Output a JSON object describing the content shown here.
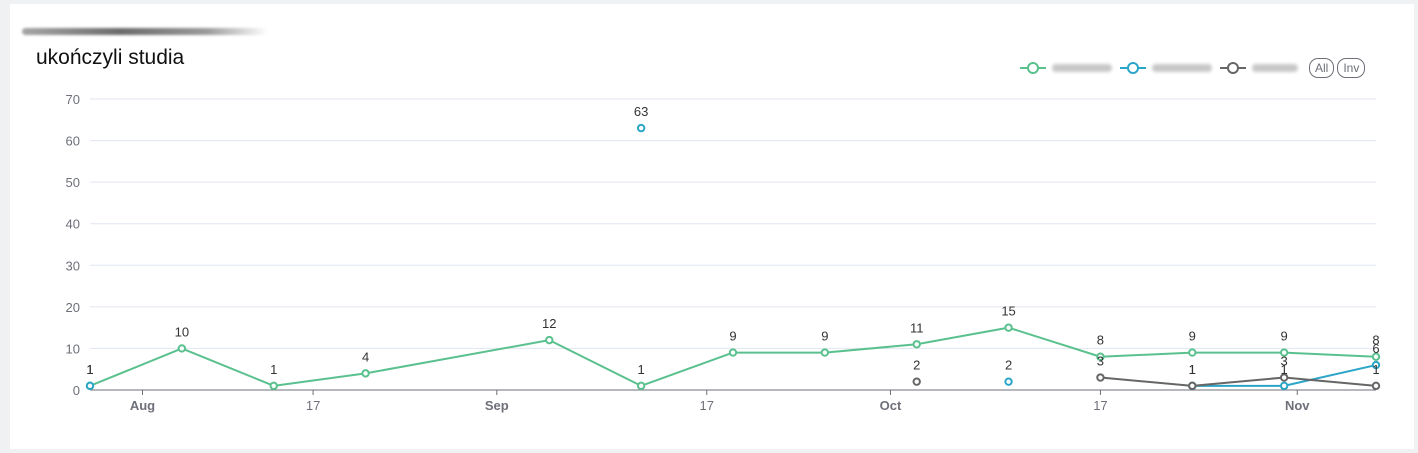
{
  "chart_data": {
    "type": "line",
    "title": "ukończyli studia",
    "x_axis": {
      "ticks": [
        {
          "label": "Aug",
          "day": 4,
          "bold": true
        },
        {
          "label": "17",
          "day": 17,
          "bold": false
        },
        {
          "label": "Sep",
          "day": 31,
          "bold": true
        },
        {
          "label": "17",
          "day": 47,
          "bold": false
        },
        {
          "label": "Oct",
          "day": 61,
          "bold": true
        },
        {
          "label": "17",
          "day": 77,
          "bold": false
        },
        {
          "label": "Nov",
          "day": 92,
          "bold": true
        }
      ],
      "min_day": 0,
      "max_day": 94
    },
    "y_axis": {
      "min": 0,
      "max": 70,
      "ticks": [
        0,
        10,
        20,
        30,
        40,
        50,
        60,
        70
      ]
    },
    "grid": true,
    "legend_position": "top-right",
    "legend_buttons": [
      "All",
      "Inv"
    ],
    "series": [
      {
        "color": "#5ac18e",
        "points": [
          {
            "day": 0,
            "value": 1
          },
          {
            "day": 7,
            "value": 10
          },
          {
            "day": 14,
            "value": 1
          },
          {
            "day": 21,
            "value": 4
          },
          {
            "day": 35,
            "value": 12
          },
          {
            "day": 42,
            "value": 1
          },
          {
            "day": 49,
            "value": 9
          },
          {
            "day": 56,
            "value": 9
          },
          {
            "day": 63,
            "value": 11
          },
          {
            "day": 70,
            "value": 15
          },
          {
            "day": 77,
            "value": 8
          },
          {
            "day": 84,
            "value": 9
          },
          {
            "day": 91,
            "value": 9
          },
          {
            "day": 98,
            "value": 8
          }
        ]
      },
      {
        "color": "#2ba5c8",
        "points": [
          {
            "day": 0,
            "value": 1
          },
          {
            "day": 42,
            "value": 63
          },
          {
            "day": 70,
            "value": 2
          },
          {
            "day": 84,
            "value": 1
          },
          {
            "day": 91,
            "value": 1
          },
          {
            "day": 98,
            "value": 6
          }
        ]
      },
      {
        "color": "#666666",
        "points": [
          {
            "day": 63,
            "value": 2
          },
          {
            "day": 77,
            "value": 3
          },
          {
            "day": 84,
            "value": 1
          },
          {
            "day": 91,
            "value": 3
          },
          {
            "day": 98,
            "value": 1
          }
        ]
      }
    ]
  }
}
